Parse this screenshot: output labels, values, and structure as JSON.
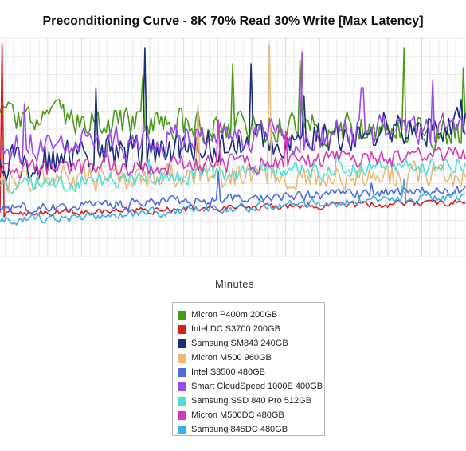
{
  "chart_data": {
    "type": "line",
    "title": "Preconditioning Curve - 8K 70% Read 30% Write [Max Latency]",
    "xlabel": "Minutes",
    "ylabel": "",
    "xlim": [
      32,
      306
    ],
    "x_ticks": [
      "40",
      "60",
      "80",
      "100",
      "120",
      "140",
      "160",
      "180",
      "200",
      "220",
      "240",
      "260",
      "280",
      "300"
    ],
    "grid": true,
    "legend_position": "bottom-center",
    "series": [
      {
        "name": "Micron P400m 200GB",
        "color": "#4a9a1a",
        "base": [
          150,
          165
        ],
        "amp": 28,
        "spikes": [
          [
            116,
            95
          ],
          [
            169,
            80
          ],
          [
            208,
            75
          ],
          [
            270,
            60
          ],
          [
            304,
            85
          ]
        ]
      },
      {
        "name": "Intel DC S3700 200GB",
        "color": "#d42020",
        "base": [
          268,
          254
        ],
        "amp": 6,
        "spikes": [
          [
            33,
            55
          ]
        ]
      },
      {
        "name": "Samsung SM843 240GB",
        "color": "#1a2e80",
        "base": [
          205,
          155
        ],
        "amp": 32,
        "spikes": [
          [
            88,
            110
          ],
          [
            117,
            60
          ],
          [
            180,
            80
          ],
          [
            211,
            120
          ],
          [
            303,
            125
          ]
        ]
      },
      {
        "name": "Micron M500 960GB",
        "color": "#e8b97a",
        "base": [
          225,
          220
        ],
        "amp": 24,
        "spikes": [
          [
            190,
            55
          ],
          [
            148,
            130
          ]
        ]
      },
      {
        "name": "Intel S3500 480GB",
        "color": "#4a6ce0",
        "base": [
          262,
          238
        ],
        "amp": 9,
        "spikes": [
          [
            160,
            215
          ],
          [
            250,
            230
          ]
        ]
      },
      {
        "name": "Smart CloudSpeed 1000E 400GB",
        "color": "#9a4ae8",
        "base": [
          185,
          160
        ],
        "amp": 28,
        "spikes": [
          [
            46,
            130
          ],
          [
            210,
            65
          ],
          [
            245,
            110
          ],
          [
            286,
            100
          ]
        ]
      },
      {
        "name": "Samsung SSD 840 Pro 512GB",
        "color": "#4de0d0",
        "base": [
          232,
          205
        ],
        "amp": 15,
        "spikes": [
          [
            120,
            200
          ],
          [
            230,
            190
          ]
        ]
      },
      {
        "name": "Micron M500DC 480GB",
        "color": "#d43ab8",
        "base": [
          215,
          195
        ],
        "amp": 16,
        "spikes": [
          [
            160,
            150
          ],
          [
            200,
            165
          ]
        ]
      },
      {
        "name": "Samsung 845DC 480GB",
        "color": "#3aaee8",
        "base": [
          277,
          245
        ],
        "amp": 8,
        "spikes": [
          [
            270,
            225
          ]
        ]
      }
    ]
  }
}
